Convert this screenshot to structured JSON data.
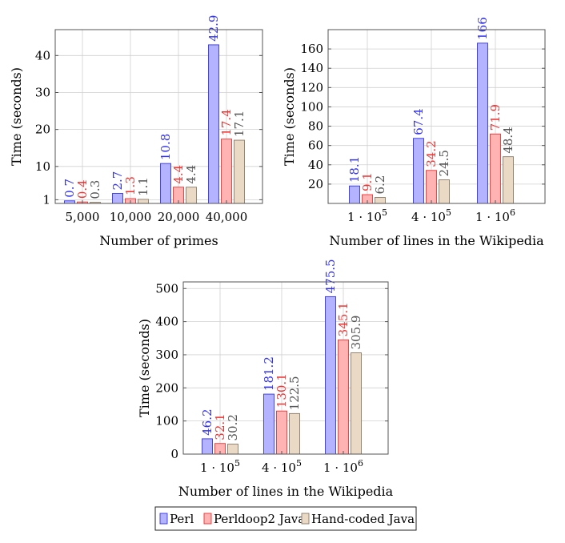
{
  "colors": {
    "perl": {
      "fill": "#b3b3ff",
      "stroke": "#3333ee",
      "label": "#3333ee"
    },
    "perldoop": {
      "fill": "#ffb3b3",
      "stroke": "#ee3333",
      "label": "#ee3333"
    },
    "handcoded": {
      "fill": "#ead9c4",
      "stroke": "#8a7a6a",
      "label": "#555555"
    },
    "grid": "#d0d0d0",
    "axis": "#555555"
  },
  "legend": {
    "items": [
      {
        "label": "Perl",
        "key": "perl"
      },
      {
        "label": "Perldoop2 Java",
        "key": "perldoop"
      },
      {
        "label": "Hand-coded Java",
        "key": "handcoded"
      }
    ]
  },
  "chart_data": [
    {
      "type": "bar",
      "title": "",
      "xlabel": "Number of primes",
      "ylabel": "Time (seconds)",
      "categories": [
        "5,000",
        "10,000",
        "20,000",
        "40,000"
      ],
      "ylim": [
        0,
        47
      ],
      "yticks": [
        1,
        10,
        20,
        30,
        40
      ],
      "grid": true,
      "series": [
        {
          "name": "Perl",
          "key": "perl",
          "values": [
            0.7,
            2.7,
            10.8,
            42.9
          ],
          "labels": [
            "0.7",
            "2.7",
            "10.8",
            "42.9"
          ]
        },
        {
          "name": "Perldoop2 Java",
          "key": "perldoop",
          "values": [
            0.4,
            1.3,
            4.4,
            17.4
          ],
          "labels": [
            "0.4",
            "1.3",
            "4.4",
            "17.4"
          ]
        },
        {
          "name": "Hand-coded Java",
          "key": "handcoded",
          "values": [
            0.3,
            1.1,
            4.4,
            17.1
          ],
          "labels": [
            "0.3",
            "1.1",
            "4.4",
            "17.1"
          ]
        }
      ]
    },
    {
      "type": "bar",
      "title": "",
      "xlabel": "Number of lines in the Wikipedia",
      "ylabel": "Time (seconds)",
      "categories": [
        "1 · 10^5",
        "4 · 10^5",
        "1 · 10^6"
      ],
      "category_parts": [
        [
          "1 · 10",
          "5"
        ],
        [
          "4 · 10",
          "5"
        ],
        [
          "1 · 10",
          "6"
        ]
      ],
      "ylim": [
        0,
        180
      ],
      "yticks": [
        20,
        40,
        60,
        80,
        100,
        120,
        140,
        160
      ],
      "grid": true,
      "series": [
        {
          "name": "Perl",
          "key": "perl",
          "values": [
            18.1,
            67.4,
            166
          ],
          "labels": [
            "18.1",
            "67.4",
            "166"
          ]
        },
        {
          "name": "Perldoop2 Java",
          "key": "perldoop",
          "values": [
            9.1,
            34.2,
            71.9
          ],
          "labels": [
            "9.1",
            "34.2",
            "71.9"
          ]
        },
        {
          "name": "Hand-coded Java",
          "key": "handcoded",
          "values": [
            6.2,
            24.5,
            48.4
          ],
          "labels": [
            "6.2",
            "24.5",
            "48.4"
          ]
        }
      ]
    },
    {
      "type": "bar",
      "title": "",
      "xlabel": "Number of lines in the Wikipedia",
      "ylabel": "Time (seconds)",
      "categories": [
        "1 · 10^5",
        "4 · 10^5",
        "1 · 10^6"
      ],
      "category_parts": [
        [
          "1 · 10",
          "5"
        ],
        [
          "4 · 10",
          "5"
        ],
        [
          "1 · 10",
          "6"
        ]
      ],
      "ylim": [
        0,
        520
      ],
      "yticks": [
        0,
        100,
        200,
        300,
        400,
        500
      ],
      "grid": true,
      "series": [
        {
          "name": "Perl",
          "key": "perl",
          "values": [
            46.2,
            181.2,
            475.5
          ],
          "labels": [
            "46.2",
            "181.2",
            "475.5"
          ]
        },
        {
          "name": "Perldoop2 Java",
          "key": "perldoop",
          "values": [
            32.1,
            130.1,
            345.1
          ],
          "labels": [
            "32.1",
            "130.1",
            "345.1"
          ]
        },
        {
          "name": "Hand-coded Java",
          "key": "handcoded",
          "values": [
            30.2,
            122.5,
            305.9
          ],
          "labels": [
            "30.2",
            "122.5",
            "305.9"
          ]
        }
      ]
    }
  ]
}
